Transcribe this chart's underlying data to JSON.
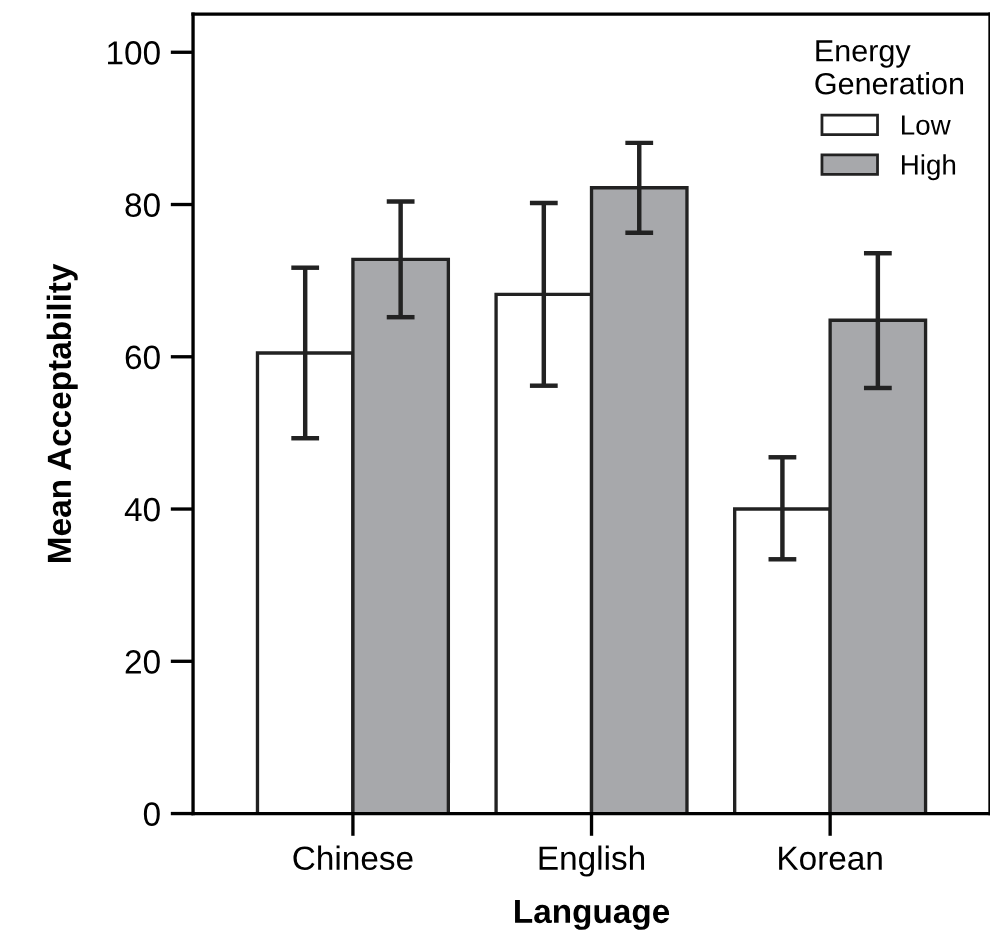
{
  "chart_data": {
    "type": "bar",
    "xlabel": "Language",
    "ylabel": "Mean Acceptability",
    "legend_title": "Energy\nGeneration",
    "categories": [
      "Chinese",
      "English",
      "Korean"
    ],
    "series": [
      {
        "name": "Low",
        "color": "#ffffff",
        "values": [
          60.5,
          68.2,
          40.0
        ],
        "errors": [
          [
            49.3,
            71.7
          ],
          [
            56.2,
            80.2
          ],
          [
            33.4,
            46.8
          ]
        ]
      },
      {
        "name": "High",
        "color": "#a7a8ab",
        "values": [
          72.8,
          82.2,
          64.8
        ],
        "errors": [
          [
            65.2,
            80.4
          ],
          [
            76.3,
            88.1
          ],
          [
            55.9,
            73.6
          ]
        ]
      }
    ],
    "ylim": [
      0,
      105
    ],
    "yticks": [
      0,
      20,
      40,
      60,
      80,
      100
    ],
    "grid": false,
    "legend": "top right"
  }
}
